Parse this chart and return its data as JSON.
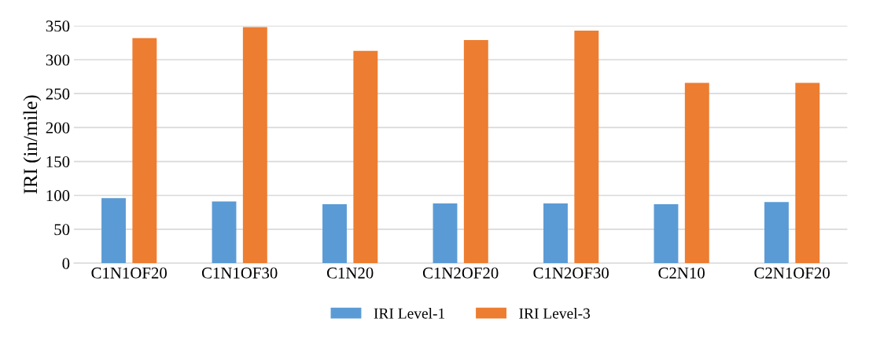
{
  "chart_data": {
    "type": "bar",
    "ylabel": "IRI (in/mile)",
    "categories": [
      "C1N1OF20",
      "C1N1OF30",
      "C1N20",
      "C1N2OF20",
      "C1N2OF30",
      "C2N10",
      "C2N1OF20"
    ],
    "series": [
      {
        "name": "IRI Level-1",
        "color": "#5b9bd5",
        "values": [
          96,
          91,
          87,
          88,
          88,
          87,
          90
        ]
      },
      {
        "name": "IRI Level-3",
        "color": "#ed7d31",
        "values": [
          332,
          348,
          313,
          329,
          343,
          266,
          266
        ]
      }
    ],
    "ylim": [
      0,
      350
    ],
    "yticks": [
      0,
      50,
      100,
      150,
      200,
      250,
      300,
      350
    ],
    "grid": "y",
    "legend": "bottom"
  }
}
